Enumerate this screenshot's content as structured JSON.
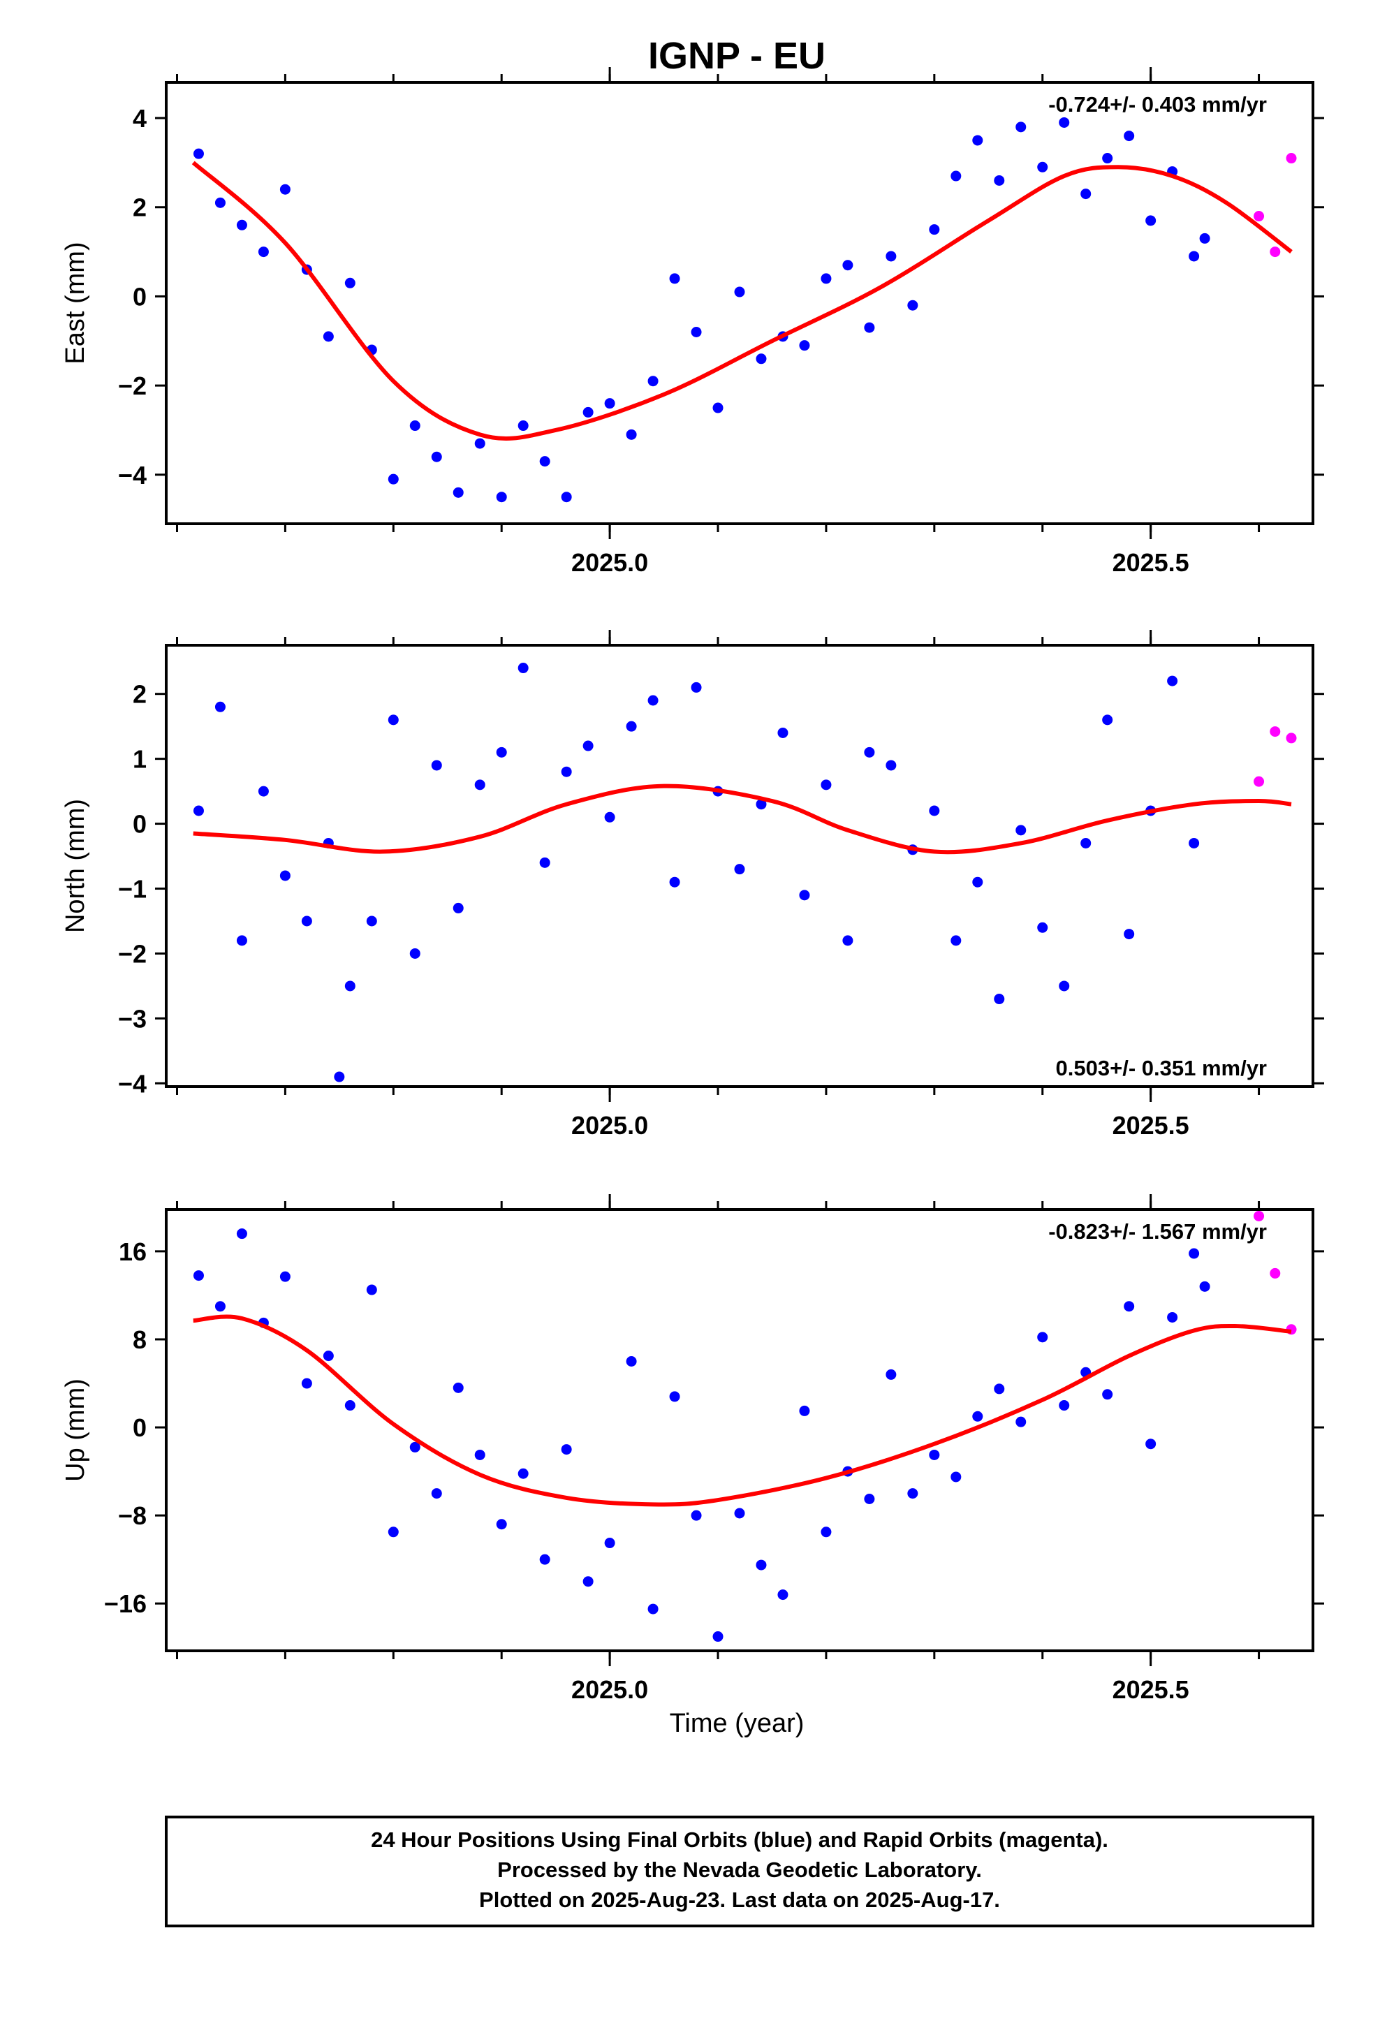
{
  "title": "IGNP - EU",
  "xlabel": "Time (year)",
  "colors": {
    "final": "#0000ff",
    "rapid": "#ff00ff",
    "fit": "#ff0000",
    "frame": "#000000"
  },
  "footer": {
    "line1": "24 Hour Positions Using Final Orbits (blue) and Rapid Orbits (magenta).",
    "line2": "Processed by the Nevada Geodetic Laboratory.",
    "line3": "Plotted on 2025-Aug-23. Last data on 2025-Aug-17."
  },
  "chart_data": [
    {
      "type": "scatter",
      "ylabel": "East (mm)",
      "rate": "-0.724+/- 0.403 mm/yr",
      "xlim": [
        2024.59,
        2025.65
      ],
      "ylim": [
        -5.1,
        4.8
      ],
      "xticks": [
        2025.0,
        2025.5
      ],
      "xtick_labels": [
        "2025.0",
        "2025.5"
      ],
      "yticks": [
        -4,
        -2,
        0,
        2,
        4
      ],
      "ytick_labels": [
        "−4",
        "−2",
        "0",
        "2",
        "4"
      ],
      "fit": {
        "x": [
          2024.615,
          2024.7,
          2024.8,
          2024.88,
          2024.95,
          2025.05,
          2025.15,
          2025.25,
          2025.35,
          2025.42,
          2025.47,
          2025.52,
          2025.57,
          2025.63
        ],
        "y": [
          3.0,
          1.2,
          -1.9,
          -3.1,
          -3.0,
          -2.2,
          -1.0,
          0.2,
          1.7,
          2.7,
          2.9,
          2.7,
          2.1,
          1.0
        ]
      },
      "final": {
        "x": [
          2024.62,
          2024.64,
          2024.66,
          2024.68,
          2024.7,
          2024.72,
          2024.74,
          2024.76,
          2024.78,
          2024.8,
          2024.82,
          2024.84,
          2024.86,
          2024.88,
          2024.9,
          2024.92,
          2024.94,
          2024.96,
          2024.98,
          2025.0,
          2025.02,
          2025.04,
          2025.06,
          2025.08,
          2025.1,
          2025.12,
          2025.14,
          2025.16,
          2025.18,
          2025.2,
          2025.22,
          2025.24,
          2025.26,
          2025.28,
          2025.3,
          2025.32,
          2025.34,
          2025.36,
          2025.38,
          2025.4,
          2025.42,
          2025.44,
          2025.46,
          2025.48,
          2025.5,
          2025.52,
          2025.54,
          2025.55
        ],
        "y": [
          3.2,
          2.1,
          1.6,
          1.0,
          2.4,
          0.6,
          -0.9,
          0.3,
          -1.2,
          -4.1,
          -2.9,
          -3.6,
          -4.4,
          -3.3,
          -4.5,
          -2.9,
          -3.7,
          -4.5,
          -2.6,
          -2.4,
          -3.1,
          -1.9,
          0.4,
          -0.8,
          -2.5,
          0.1,
          -1.4,
          -0.9,
          -1.1,
          0.4,
          0.7,
          -0.7,
          0.9,
          -0.2,
          1.5,
          2.7,
          3.5,
          2.6,
          3.8,
          2.9,
          3.9,
          2.3,
          3.1,
          3.6,
          1.7,
          2.8,
          0.9,
          1.3
        ]
      },
      "rapid": {
        "x": [
          2025.6,
          2025.615,
          2025.63
        ],
        "y": [
          1.8,
          1.0,
          3.1
        ]
      }
    },
    {
      "type": "scatter",
      "ylabel": "North (mm)",
      "rate": "0.503+/- 0.351 mm/yr",
      "xlim": [
        2024.59,
        2025.65
      ],
      "ylim": [
        -4.05,
        2.75
      ],
      "xticks": [
        2025.0,
        2025.5
      ],
      "xtick_labels": [
        "2025.0",
        "2025.5"
      ],
      "yticks": [
        -4,
        -3,
        -2,
        -1,
        0,
        1,
        2
      ],
      "ytick_labels": [
        "−4",
        "−3",
        "−2",
        "−1",
        "0",
        "1",
        "2"
      ],
      "fit": {
        "x": [
          2024.615,
          2024.7,
          2024.79,
          2024.88,
          2024.96,
          2025.05,
          2025.15,
          2025.22,
          2025.3,
          2025.38,
          2025.46,
          2025.54,
          2025.6,
          2025.63
        ],
        "y": [
          -0.15,
          -0.25,
          -0.43,
          -0.2,
          0.3,
          0.58,
          0.35,
          -0.1,
          -0.43,
          -0.3,
          0.05,
          0.3,
          0.35,
          0.3
        ]
      },
      "final": {
        "x": [
          2024.62,
          2024.64,
          2024.66,
          2024.68,
          2024.7,
          2024.72,
          2024.74,
          2024.75,
          2024.76,
          2024.78,
          2024.8,
          2024.82,
          2024.84,
          2024.86,
          2024.88,
          2024.9,
          2024.92,
          2024.94,
          2024.96,
          2024.98,
          2025.0,
          2025.02,
          2025.04,
          2025.06,
          2025.08,
          2025.1,
          2025.12,
          2025.14,
          2025.16,
          2025.18,
          2025.2,
          2025.22,
          2025.24,
          2025.26,
          2025.28,
          2025.3,
          2025.32,
          2025.34,
          2025.36,
          2025.38,
          2025.4,
          2025.42,
          2025.44,
          2025.46,
          2025.48,
          2025.5,
          2025.52,
          2025.54
        ],
        "y": [
          0.2,
          1.8,
          -1.8,
          0.5,
          -0.8,
          -1.5,
          -0.3,
          -3.9,
          -2.5,
          -1.5,
          1.6,
          -2.0,
          0.9,
          -1.3,
          0.6,
          1.1,
          2.4,
          -0.6,
          0.8,
          1.2,
          0.1,
          1.5,
          1.9,
          -0.9,
          2.1,
          0.5,
          -0.7,
          0.3,
          1.4,
          -1.1,
          0.6,
          -1.8,
          1.1,
          0.9,
          -0.4,
          0.2,
          -1.8,
          -0.9,
          -2.7,
          -0.1,
          -1.6,
          -2.5,
          -0.3,
          1.6,
          -1.7,
          0.2,
          2.2,
          -0.3
        ]
      },
      "rapid": {
        "x": [
          2025.6,
          2025.615,
          2025.63
        ],
        "y": [
          0.65,
          1.42,
          1.32
        ]
      }
    },
    {
      "type": "scatter",
      "ylabel": "Up (mm)",
      "rate": "-0.823+/- 1.567 mm/yr",
      "xlim": [
        2024.59,
        2025.65
      ],
      "ylim": [
        -20.3,
        19.8
      ],
      "xticks": [
        2025.0,
        2025.5
      ],
      "xtick_labels": [
        "2025.0",
        "2025.5"
      ],
      "yticks": [
        -16,
        -8,
        0,
        8,
        16
      ],
      "ytick_labels": [
        "−16",
        "−8",
        "0",
        "8",
        "16"
      ],
      "fit": {
        "x": [
          2024.615,
          2024.66,
          2024.72,
          2024.8,
          2024.88,
          2024.96,
          2025.04,
          2025.1,
          2025.2,
          2025.3,
          2025.4,
          2025.48,
          2025.54,
          2025.58,
          2025.63
        ],
        "y": [
          9.7,
          9.9,
          7.0,
          0.3,
          -4.3,
          -6.4,
          -7.0,
          -6.6,
          -4.6,
          -1.5,
          2.5,
          6.5,
          8.8,
          9.2,
          8.7
        ]
      },
      "final": {
        "x": [
          2024.62,
          2024.64,
          2024.66,
          2024.68,
          2024.7,
          2024.72,
          2024.74,
          2024.76,
          2024.78,
          2024.8,
          2024.82,
          2024.84,
          2024.86,
          2024.88,
          2024.9,
          2024.92,
          2024.94,
          2024.96,
          2024.98,
          2025.0,
          2025.02,
          2025.04,
          2025.06,
          2025.08,
          2025.1,
          2025.12,
          2025.14,
          2025.16,
          2025.18,
          2025.2,
          2025.22,
          2025.24,
          2025.26,
          2025.28,
          2025.3,
          2025.32,
          2025.34,
          2025.36,
          2025.38,
          2025.4,
          2025.42,
          2025.44,
          2025.46,
          2025.48,
          2025.5,
          2025.52,
          2025.54,
          2025.55
        ],
        "y": [
          13.8,
          11.0,
          17.6,
          9.5,
          13.7,
          4.0,
          6.5,
          2.0,
          12.5,
          -9.5,
          -1.8,
          -6.0,
          3.6,
          -2.5,
          -8.8,
          -4.2,
          -12.0,
          -2.0,
          -14.0,
          -10.5,
          6.0,
          -16.5,
          2.8,
          -8.0,
          -19.0,
          -7.8,
          -12.5,
          -15.2,
          1.5,
          -9.5,
          -4.0,
          -6.5,
          4.8,
          -6.0,
          -2.5,
          -4.5,
          1.0,
          3.5,
          0.5,
          8.2,
          2.0,
          5.0,
          3.0,
          11.0,
          -1.5,
          10.0,
          15.8,
          12.8
        ]
      },
      "rapid": {
        "x": [
          2025.6,
          2025.615,
          2025.63
        ],
        "y": [
          19.2,
          14.0,
          8.9
        ]
      }
    }
  ]
}
